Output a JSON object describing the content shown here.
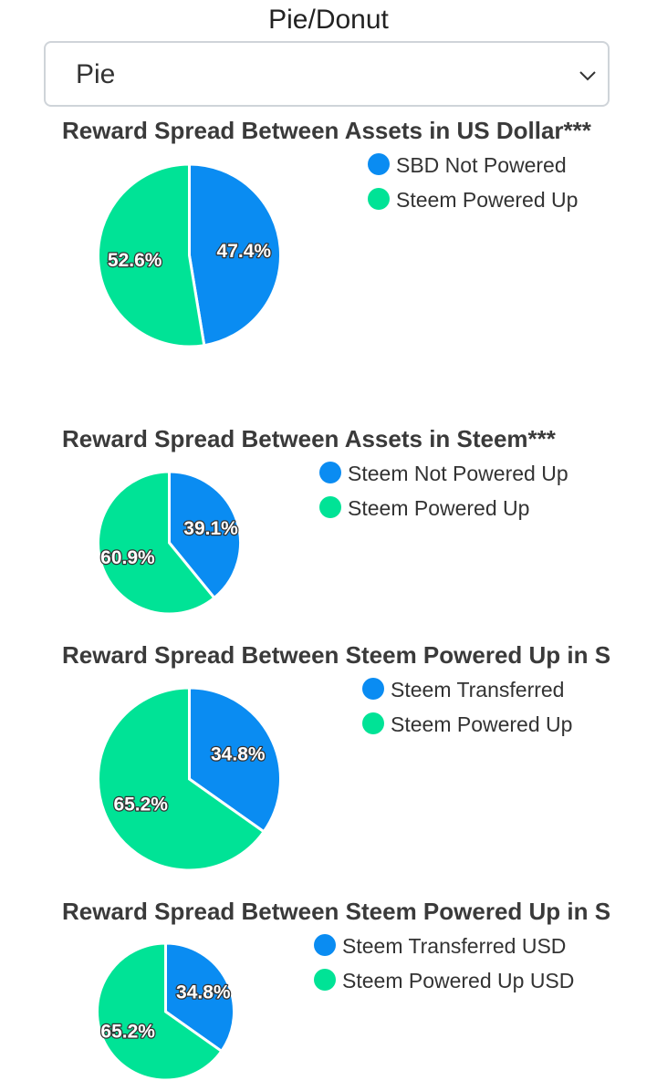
{
  "chart_type_select": {
    "label": "Pie/Donut",
    "selected": "Pie"
  },
  "colors": {
    "series_1": "#0a8cf2",
    "series_2": "#00e396"
  },
  "chart_data": [
    {
      "type": "pie",
      "title": "Reward Spread Between Assets in US Dollar***",
      "labels": [
        "SBD Not Powered",
        "Steem Powered Up"
      ],
      "values": [
        47.4,
        52.6
      ],
      "value_labels": [
        "47.4%",
        "52.6%"
      ],
      "legend": "top-right"
    },
    {
      "type": "pie",
      "title": "Reward Spread Between Assets in Steem***",
      "labels": [
        "Steem Not Powered Up",
        "Steem Powered Up"
      ],
      "values": [
        39.1,
        60.9
      ],
      "value_labels": [
        "39.1%",
        "60.9%"
      ],
      "legend": "top-right"
    },
    {
      "type": "pie",
      "title": "Reward Spread Between Steem Powered Up in S",
      "labels": [
        "Steem Transferred",
        "Steem Powered Up"
      ],
      "values": [
        34.8,
        65.2
      ],
      "value_labels": [
        "34.8%",
        "65.2%"
      ],
      "legend": "top-right"
    },
    {
      "type": "pie",
      "title": "Reward Spread Between Steem Powered Up in S",
      "labels": [
        "Steem Transferred USD",
        "Steem Powered Up USD"
      ],
      "values": [
        34.8,
        65.2
      ],
      "value_labels": [
        "34.8%",
        "65.2%"
      ],
      "legend": "top-right"
    }
  ]
}
